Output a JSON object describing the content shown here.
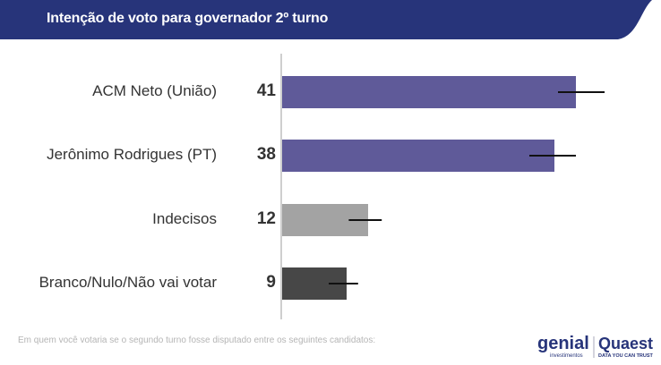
{
  "header": {
    "title": "Intenção de voto para governador 2º turno",
    "color": "#27347a"
  },
  "chart_data": {
    "type": "bar",
    "orientation": "horizontal",
    "categories": [
      "ACM Neto (União)",
      "Jerônimo Rodrigues (PT)",
      "Indecisos",
      "Branco/Nulo/Não vai votar"
    ],
    "values": [
      41,
      38,
      12,
      9
    ],
    "data_labels": [
      "41",
      "38",
      "12",
      "9"
    ],
    "error_ranges": [
      [
        38.5,
        45
      ],
      [
        34.5,
        41
      ],
      [
        9.3,
        13.9
      ],
      [
        6.5,
        10.6
      ]
    ],
    "colors": [
      "#5f5a99",
      "#5f5a99",
      "#a3a3a3",
      "#474747"
    ],
    "xlim": [
      0,
      50
    ],
    "grid": false,
    "title": "",
    "xlabel": "",
    "ylabel": ""
  },
  "footnote": "Em quem você votaria se o segundo turno fosse disputado entre os seguintes candidatos:",
  "logos": {
    "genial": "genial",
    "genial_sub": "investimentos",
    "quaest": "Quaest",
    "quaest_sub": "DATA YOU CAN TRUST"
  }
}
